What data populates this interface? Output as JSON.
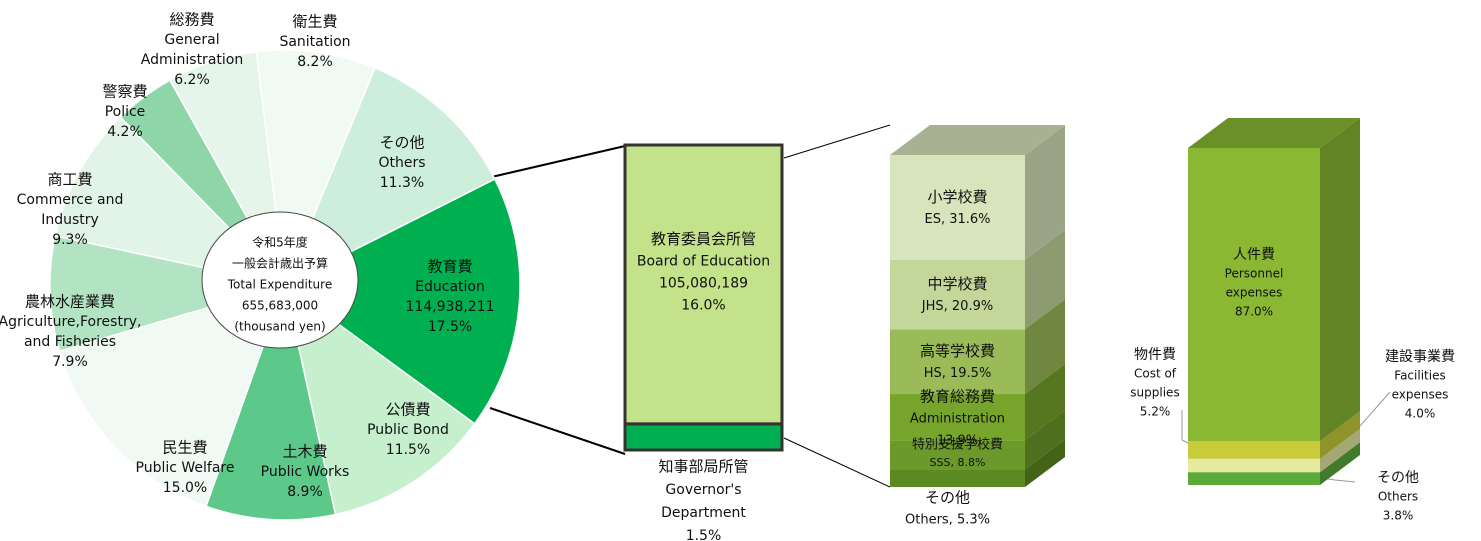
{
  "chart_data": [
    {
      "type": "pie",
      "center_text": [
        "令和5年度",
        "一般会計歳出予算",
        "Total Expenditure",
        "655,683,000",
        "(thousand yen)"
      ],
      "categories": [
        "衛生費",
        "その他",
        "教育費",
        "公債費",
        "土木費",
        "民生費",
        "農林水産業費",
        "商工費",
        "警察費",
        "総務費"
      ],
      "labels_en": [
        [
          "Sanitation"
        ],
        [
          "Others"
        ],
        [
          "Education"
        ],
        [
          "Public Bond"
        ],
        [
          "Public Works"
        ],
        [
          "Public Welfare"
        ],
        [
          "Agriculture,Forestry,",
          "and Fisheries"
        ],
        [
          "Commerce and",
          "Industry"
        ],
        [
          "Police"
        ],
        [
          "General",
          "Administration"
        ]
      ],
      "amount_label": "114,938,211",
      "values": [
        8.2,
        11.3,
        17.5,
        11.5,
        8.9,
        15.0,
        7.9,
        9.3,
        4.2,
        6.2
      ],
      "value_labels": [
        "8.2%",
        "11.3%",
        "17.5%",
        "11.5%",
        "8.9%",
        "15.0%",
        "7.9%",
        "9.3%",
        "4.2%",
        "6.2%"
      ],
      "colors": [
        "#f1f9f3",
        "#cdeedb",
        "#00b050",
        "#c6efce",
        "#5cc98a",
        "#f0f9f3",
        "#b2e4c4",
        "#e2f4e8",
        "#8ed6a8",
        "#e6f5ea"
      ]
    },
    {
      "type": "stacked-bar",
      "categories": [
        "教育委員会所管",
        "知事部局所管"
      ],
      "labels_en": [
        [
          "Board of Education"
        ],
        [
          "Governor's",
          "Department"
        ]
      ],
      "amount_labels": [
        "105,080,189"
      ],
      "values": [
        16.0,
        1.5
      ],
      "value_labels": [
        "16.0%",
        "1.5%"
      ],
      "colors": [
        "#c4e28a",
        "#00b050"
      ]
    },
    {
      "type": "stacked-bar-3d",
      "categories": [
        "小学校費",
        "中学校費",
        "高等学校費",
        "教育総務費",
        "特別支援学校費",
        "その他"
      ],
      "values": [
        31.6,
        20.9,
        19.5,
        13.9,
        8.8,
        5.3
      ],
      "value_labels": [
        [
          "ES, 31.6%"
        ],
        [
          "JHS, 20.9%"
        ],
        [
          "HS, 19.5%"
        ],
        [
          "Administration",
          "13.9%"
        ],
        [
          "SSS, 8.8%"
        ],
        [
          "Others, 5.3%"
        ]
      ],
      "colors": [
        "#d8e4bc",
        "#c4d79b",
        "#9bbb59",
        "#77a52c",
        "#6b9a2a",
        "#5b8a22"
      ]
    },
    {
      "type": "stacked-bar-3d",
      "categories": [
        "人件費",
        "物件費",
        "建設事業費",
        "その他"
      ],
      "labels_en": [
        [
          "Personnel",
          "expenses"
        ],
        [
          "Cost of",
          "supplies"
        ],
        [
          "Facilities",
          "expenses"
        ],
        [
          "Others"
        ]
      ],
      "values": [
        87.0,
        5.2,
        4.0,
        3.8
      ],
      "value_labels": [
        "87.0%",
        "5.2%",
        "4.0%",
        "3.8%"
      ],
      "colors": [
        "#8ab833",
        "#c8cc3a",
        "#e4ea9e",
        "#5aaa3a"
      ]
    }
  ]
}
